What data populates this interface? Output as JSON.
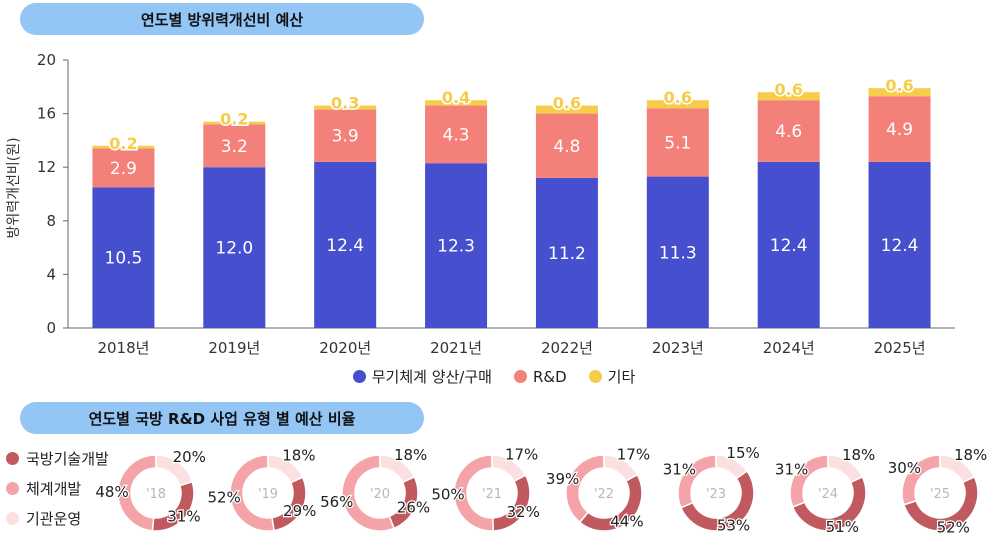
{
  "section1_title": "연도별 방위력개선비 예산",
  "section2_title": "연도별 국방 R&D 사업 유형 별 예산 비율",
  "colors": {
    "weapons": "#4650cf",
    "rnd": "#f4807a",
    "other": "#f6cd4a",
    "tech_dev": "#c15a5f",
    "system_dev": "#f4a3a8",
    "infra_ops": "#fbdfe1"
  },
  "chart_data": [
    {
      "type": "bar",
      "stacked": true,
      "title": "",
      "ylabel": "방위력개선비(원)",
      "ylim": [
        0,
        20
      ],
      "yticks": [
        0,
        4,
        8,
        12,
        16,
        20
      ],
      "categories": [
        "2018년",
        "2019년",
        "2020년",
        "2021년",
        "2022년",
        "2023년",
        "2024년",
        "2025년"
      ],
      "series": [
        {
          "name": "무기체계 양산/구매",
          "color": "#4650cf",
          "values": [
            10.5,
            12.0,
            12.4,
            12.3,
            11.2,
            11.3,
            12.4,
            12.4
          ],
          "labels": [
            "10.5",
            "12.0",
            "12.4",
            "12.3",
            "11.2",
            "11.3",
            "12.4",
            "12.4"
          ]
        },
        {
          "name": "R&D",
          "color": "#f4807a",
          "values": [
            2.9,
            3.2,
            3.9,
            4.3,
            4.8,
            5.1,
            4.6,
            4.9
          ],
          "labels": [
            "2.9",
            "3.2",
            "3.9",
            "4.3",
            "4.8",
            "5.1",
            "4.6",
            "4.9"
          ]
        },
        {
          "name": "기타",
          "color": "#f6cd4a",
          "values": [
            0.2,
            0.2,
            0.3,
            0.4,
            0.6,
            0.6,
            0.6,
            0.6
          ],
          "labels": [
            "0.2",
            "0.2",
            "0.3",
            "0.4",
            "0.6",
            "0.6",
            "0.6",
            "0.6"
          ]
        }
      ],
      "legend": "bottom"
    },
    {
      "type": "pie",
      "donut": true,
      "legend": "left",
      "series_names": [
        "국방기술개발",
        "체계개발",
        "기관운영"
      ],
      "series_colors": [
        "#c15a5f",
        "#f4a3a8",
        "#fbdfe1"
      ],
      "years": [
        {
          "label": "'18",
          "values": [
            31,
            48,
            20
          ],
          "labels": [
            "31%",
            "48%",
            "20%"
          ]
        },
        {
          "label": "'19",
          "values": [
            29,
            52,
            18
          ],
          "labels": [
            "29%",
            "52%",
            "18%"
          ]
        },
        {
          "label": "'20",
          "values": [
            26,
            56,
            18
          ],
          "labels": [
            "26%",
            "56%",
            "18%"
          ]
        },
        {
          "label": "'21",
          "values": [
            32,
            50,
            17
          ],
          "labels": [
            "32%",
            "50%",
            "17%"
          ]
        },
        {
          "label": "'22",
          "values": [
            44,
            39,
            17
          ],
          "labels": [
            "44%",
            "39%",
            "17%"
          ]
        },
        {
          "label": "'23",
          "values": [
            53,
            31,
            15
          ],
          "labels": [
            "53%",
            "31%",
            "15%"
          ]
        },
        {
          "label": "'24",
          "values": [
            51,
            31,
            18
          ],
          "labels": [
            "51%",
            "31%",
            "18%"
          ]
        },
        {
          "label": "'25",
          "values": [
            52,
            30,
            18
          ],
          "labels": [
            "52%",
            "30%",
            "18%"
          ]
        }
      ]
    }
  ]
}
